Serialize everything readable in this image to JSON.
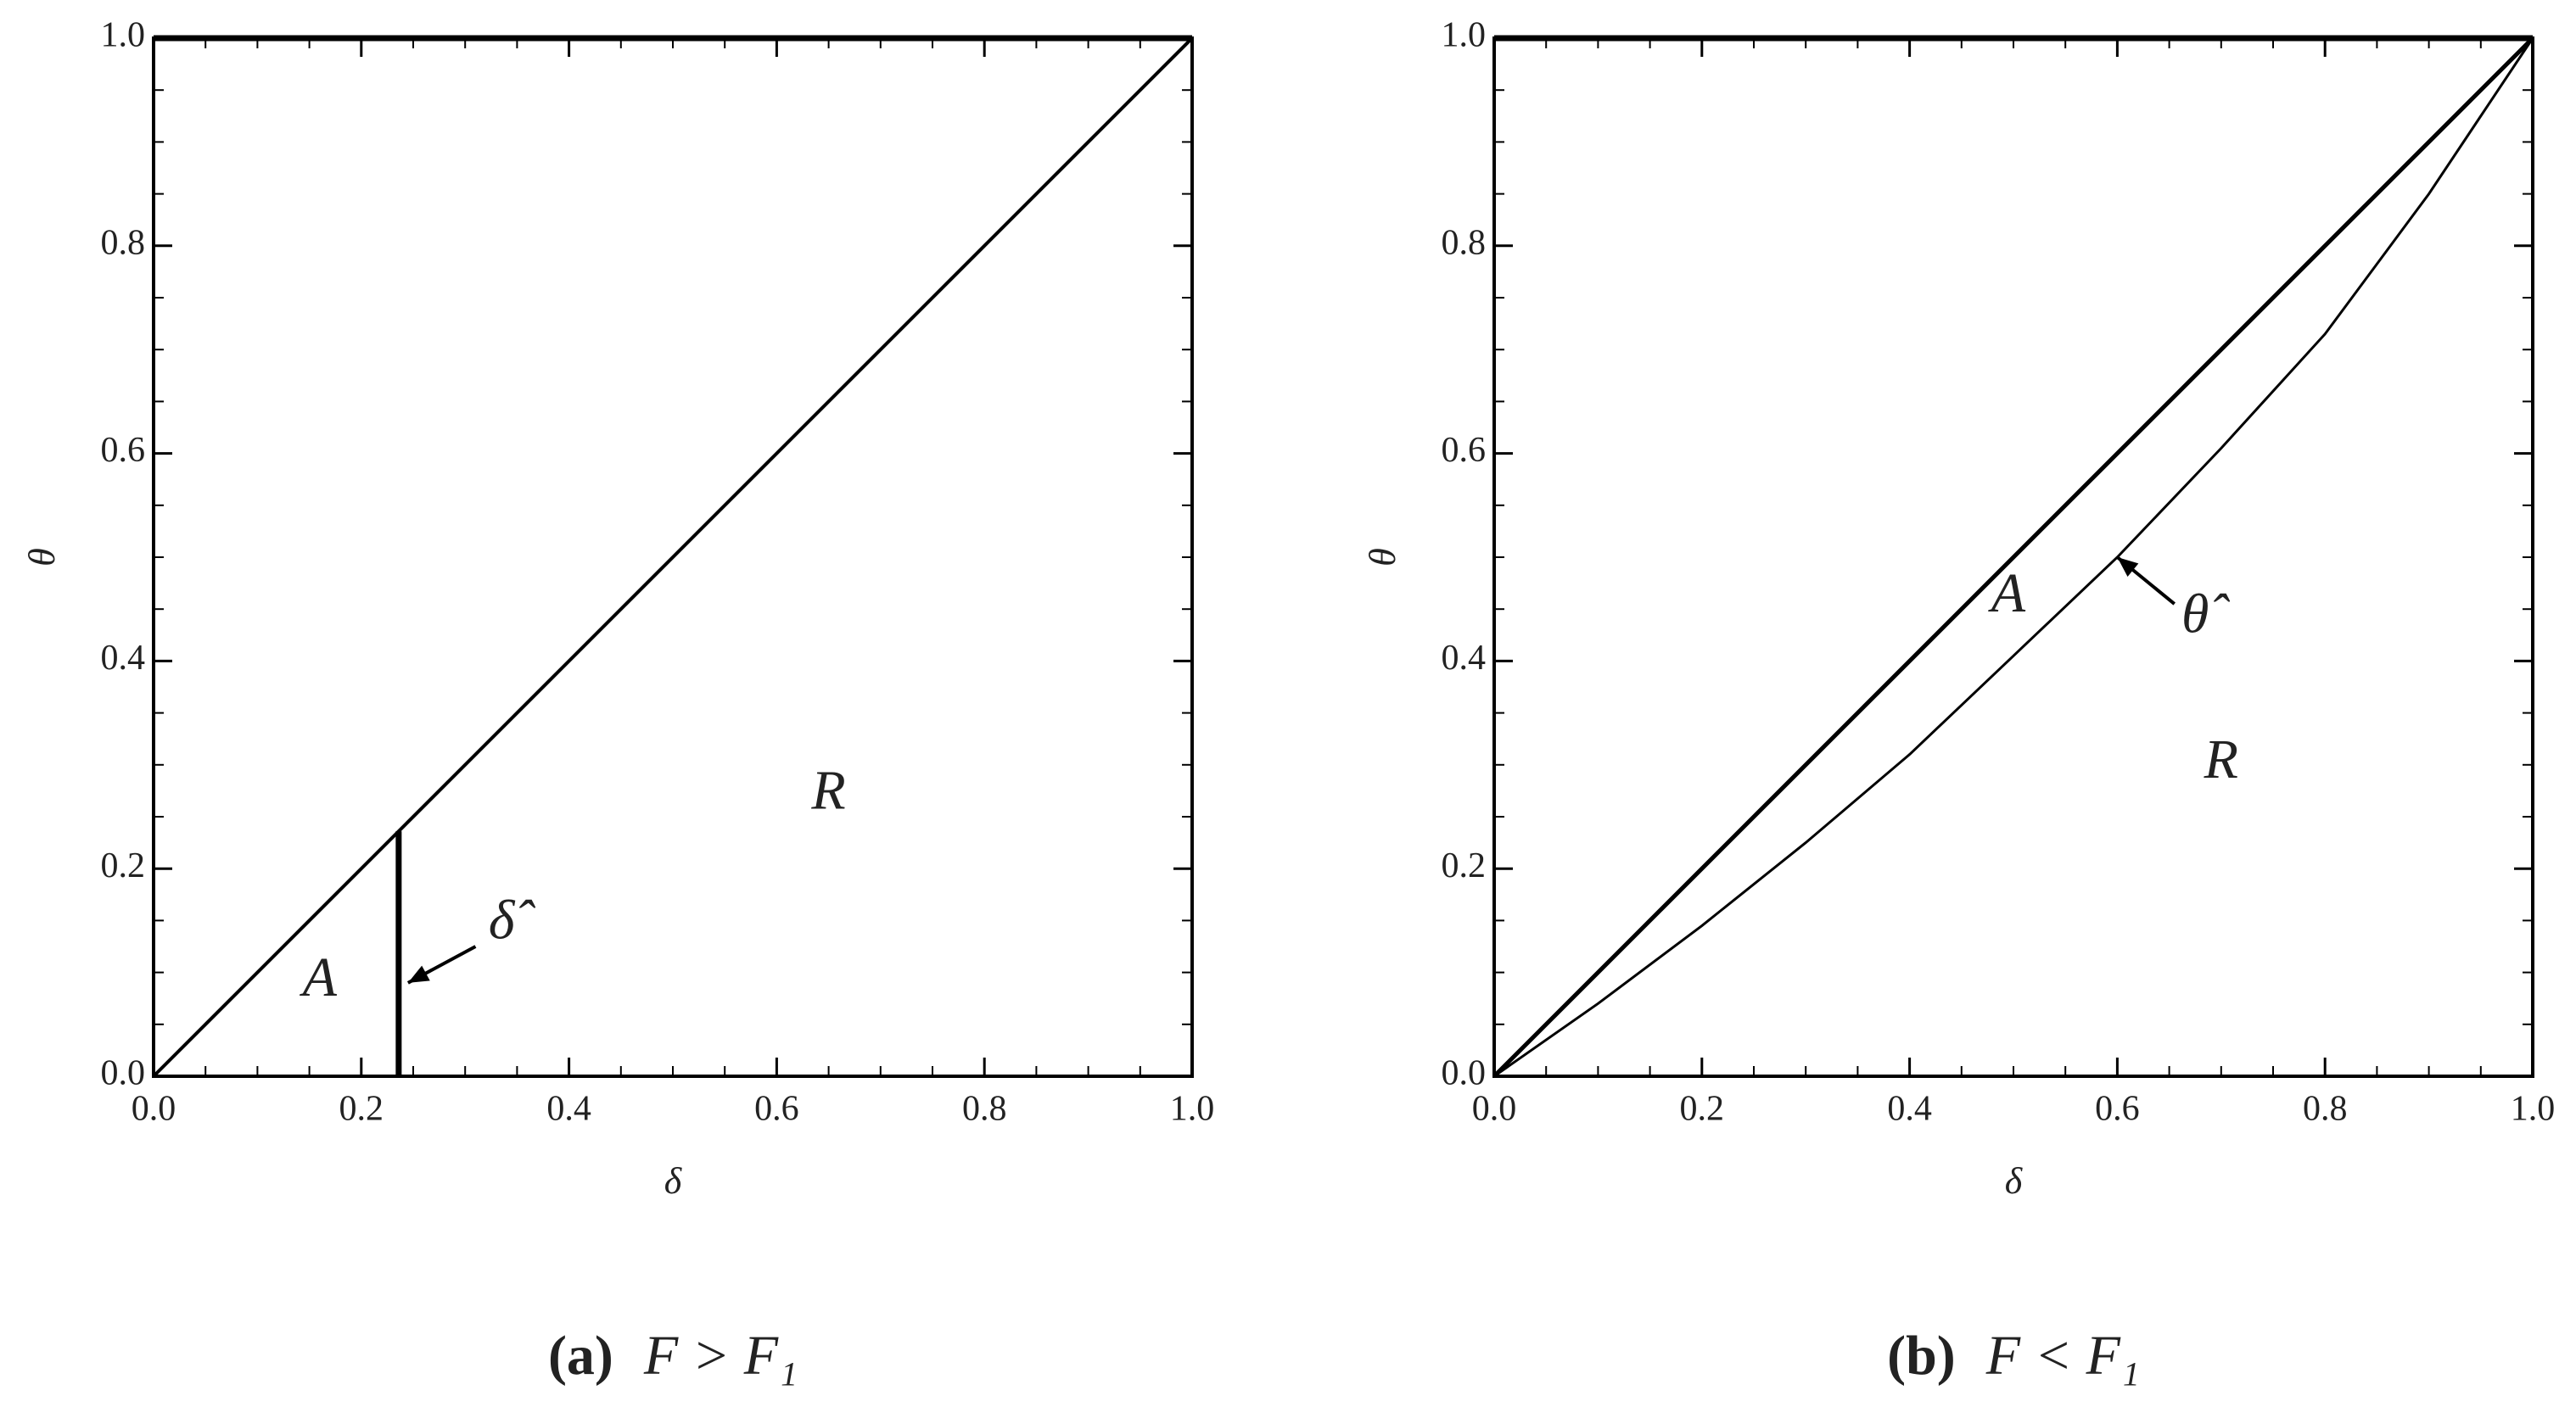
{
  "chart_data": [
    {
      "type": "line",
      "xlabel": "δ",
      "ylabel": "θ",
      "caption_label": "(a)",
      "caption": "F > F₁",
      "xlim": [
        0,
        1
      ],
      "ylim": [
        0,
        1
      ],
      "xticks": [
        {
          "value": 0,
          "label": "0.0"
        },
        0.2,
        0.4,
        0.6,
        0.8,
        {
          "value": 1,
          "label": "1.0"
        }
      ],
      "yticks": [
        {
          "value": 0,
          "label": "0.0"
        },
        0.2,
        0.4,
        0.6,
        0.8,
        {
          "value": 1,
          "label": "1.0"
        }
      ],
      "series": [
        {
          "color": "#000000",
          "linewidth": 4,
          "x": [
            0,
            1
          ],
          "values": [
            0,
            1
          ]
        },
        {
          "color": "#000000",
          "linewidth": 7,
          "x": [
            0.236,
            0.236
          ],
          "values": [
            0,
            0.236
          ]
        }
      ],
      "annotations": [
        "A",
        "R",
        "δ̂"
      ]
    },
    {
      "type": "line",
      "xlabel": "δ",
      "ylabel": "θ",
      "caption_label": "(b)",
      "caption": "F < F₁",
      "xlim": [
        0,
        1
      ],
      "ylim": [
        0,
        1
      ],
      "xticks": [
        {
          "value": 0,
          "label": "0.0"
        },
        0.2,
        0.4,
        0.6,
        0.8,
        {
          "value": 1,
          "label": "1.0"
        }
      ],
      "yticks": [
        {
          "value": 0,
          "label": "0.0"
        },
        0.2,
        0.4,
        0.6,
        0.8,
        {
          "value": 1,
          "label": "1.0"
        }
      ],
      "series": [
        {
          "color": "#000000",
          "linewidth": 5,
          "x": [
            0,
            1
          ],
          "values": [
            0,
            1
          ]
        },
        {
          "color": "#000000",
          "linewidth": 3,
          "x": [
            0,
            0.1,
            0.2,
            0.3,
            0.4,
            0.5,
            0.6,
            0.7,
            0.8,
            0.9,
            1
          ],
          "values": [
            0,
            0.07,
            0.145,
            0.225,
            0.31,
            0.405,
            0.5,
            0.605,
            0.715,
            0.85,
            1
          ]
        }
      ],
      "annotations": [
        "A",
        "R",
        "θ̂"
      ]
    }
  ]
}
